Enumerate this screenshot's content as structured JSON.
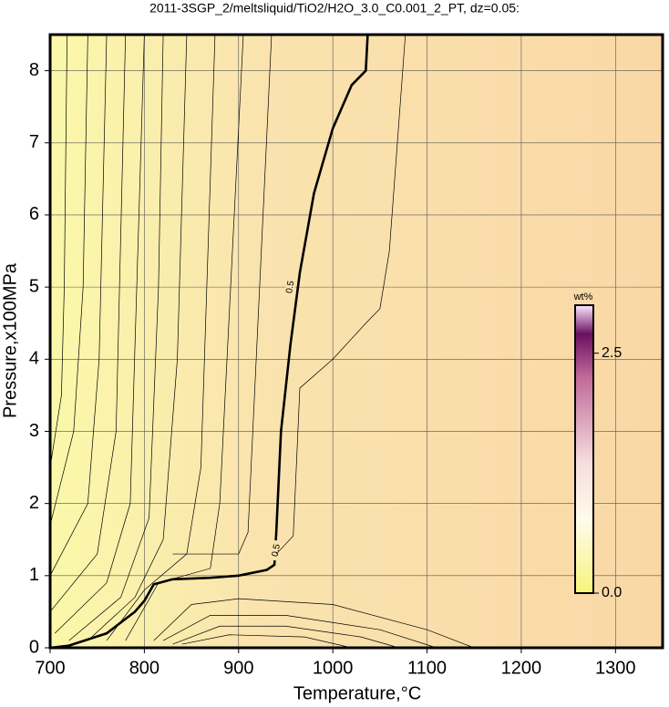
{
  "chart_data": {
    "type": "contour",
    "title": "2011-3SGP_2/meltsliquid/TiO2/H2O_3.0_C0.001_2_PT, dz=0.05:",
    "x_label": "Temperature,°C",
    "y_label": "Pressure,x100MPa",
    "xlim": [
      700,
      1350
    ],
    "ylim": [
      0,
      8.5
    ],
    "xticks": [
      700,
      800,
      900,
      1000,
      1100,
      1200,
      1300
    ],
    "yticks": [
      0,
      1,
      2,
      3,
      4,
      5,
      6,
      7,
      8
    ],
    "grid": true,
    "contours": [
      {
        "level": 0.5,
        "bold": true,
        "x": [
          700,
          720,
          760,
          790,
          800,
          810,
          830,
          870,
          900,
          930,
          938,
          940,
          945,
          955,
          965,
          980,
          1000,
          1020,
          1035,
          1037
        ],
        "y": [
          0,
          0.03,
          0.2,
          0.5,
          0.65,
          0.88,
          0.95,
          0.97,
          1.0,
          1.08,
          1.15,
          1.6,
          3.0,
          4.2,
          5.2,
          6.3,
          7.2,
          7.8,
          8.0,
          8.5
        ],
        "label_points": [
          [
            955,
            5.0
          ],
          [
            940,
            1.35
          ]
        ]
      },
      {
        "x": [
          700,
          712,
          715,
          718
        ],
        "y": [
          2.5,
          3.5,
          5,
          8.5
        ]
      },
      {
        "x": [
          700,
          725,
          735,
          740
        ],
        "y": [
          1.7,
          3,
          5,
          8.5
        ]
      },
      {
        "x": [
          700,
          740,
          752,
          760
        ],
        "y": [
          1.0,
          2.0,
          4,
          8.5
        ]
      },
      {
        "x": [
          700,
          750,
          770,
          780
        ],
        "y": [
          0.5,
          1.3,
          3,
          8.5
        ]
      },
      {
        "x": [
          705,
          760,
          785,
          800
        ],
        "y": [
          0.2,
          0.9,
          2,
          8.5
        ]
      },
      {
        "x": [
          720,
          775,
          805,
          815,
          820
        ],
        "y": [
          0.1,
          0.7,
          1.8,
          5,
          8.5
        ]
      },
      {
        "x": [
          740,
          790,
          820,
          835,
          845
        ],
        "y": [
          0.1,
          0.7,
          1.5,
          4,
          8.5
        ]
      },
      {
        "x": [
          760,
          800,
          845,
          860,
          875
        ],
        "y": [
          0.1,
          0.8,
          1.3,
          2.5,
          8.5
        ]
      },
      {
        "x": [
          780,
          815,
          870,
          880,
          905
        ],
        "y": [
          0.1,
          0.9,
          1.1,
          2.0,
          8.5
        ]
      },
      {
        "x": [
          830,
          900,
          910,
          935
        ],
        "y": [
          1.3,
          1.3,
          1.6,
          8.5
        ]
      },
      {
        "x": [
          940,
          958,
          965,
          1000,
          1035,
          1050,
          1060,
          1077
        ],
        "y": [
          1.3,
          1.55,
          3.6,
          4.0,
          4.5,
          4.7,
          5.5,
          8.5
        ]
      },
      {
        "x": [
          810,
          850,
          900,
          1000,
          1100,
          1150
        ],
        "y": [
          0.1,
          0.6,
          0.68,
          0.6,
          0.25,
          0.0
        ]
      },
      {
        "x": [
          820,
          870,
          950,
          1050,
          1110
        ],
        "y": [
          0.1,
          0.45,
          0.45,
          0.25,
          0.0
        ]
      },
      {
        "x": [
          830,
          880,
          950,
          1030,
          1070
        ],
        "y": [
          0.05,
          0.3,
          0.3,
          0.15,
          0.0
        ]
      },
      {
        "x": [
          840,
          890,
          970,
          1020
        ],
        "y": [
          0.05,
          0.18,
          0.15,
          0.0
        ]
      }
    ],
    "colorbar": {
      "label": "wt%",
      "lim": [
        0,
        3
      ],
      "ticks": [
        {
          "value": 0,
          "label": "0.0"
        },
        2.5
      ]
    }
  }
}
